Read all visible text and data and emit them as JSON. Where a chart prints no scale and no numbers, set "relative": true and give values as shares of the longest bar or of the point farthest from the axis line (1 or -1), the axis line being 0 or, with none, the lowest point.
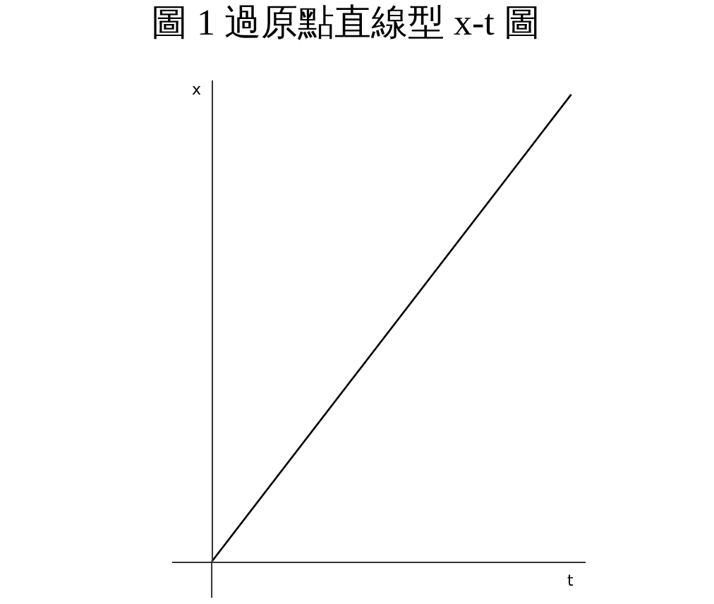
{
  "chart_data": {
    "type": "line",
    "title": "圖 1 過原點直線型 x-t 圖",
    "xlabel": "t",
    "ylabel": "x",
    "categories": [
      null,
      null
    ],
    "series": [
      {
        "color": "#000000",
        "values": [
          0,
          1
        ]
      }
    ],
    "relative": true,
    "grid": false,
    "marker": "none",
    "line_style": "solid"
  }
}
